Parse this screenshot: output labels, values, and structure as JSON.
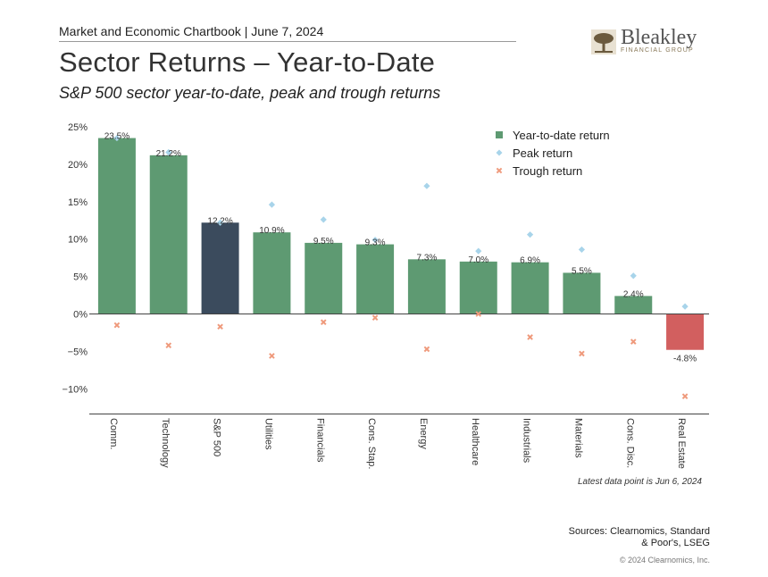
{
  "header": {
    "source_line": "Market and Economic Chartbook | June 7, 2024",
    "title": "Sector Returns – Year-to-Date",
    "subtitle": "S&P 500 sector year-to-date, peak and trough returns"
  },
  "logo": {
    "name": "Bleakley",
    "tagline": "FINANCIAL GROUP",
    "icon": "tree-icon"
  },
  "colors": {
    "ytd_sector": "#5e9a72",
    "ytd_sp500": "#3b4b5d",
    "ytd_negative": "#d25f5f",
    "peak": "#a8d4ea",
    "trough": "#ef9a7c",
    "axis": "#444444"
  },
  "chart_data": {
    "type": "bar",
    "categories": [
      "Comm.",
      "Technology",
      "S&P 500",
      "Utilities",
      "Financials",
      "Cons. Stap.",
      "Energy",
      "Healthcare",
      "Industrials",
      "Materials",
      "Cons. Disc.",
      "Real Estate"
    ],
    "series": [
      {
        "name": "Year-to-date return",
        "type": "bar",
        "values": [
          23.5,
          21.2,
          12.2,
          10.9,
          9.5,
          9.3,
          7.3,
          7.0,
          6.9,
          5.5,
          2.4,
          -4.8
        ]
      },
      {
        "name": "Peak return",
        "type": "scatter",
        "marker": "diamond",
        "values": [
          23.5,
          21.6,
          12.2,
          14.6,
          12.6,
          9.9,
          17.1,
          8.4,
          10.6,
          8.6,
          5.1,
          1.0
        ]
      },
      {
        "name": "Trough return",
        "type": "scatter",
        "marker": "x",
        "values": [
          -1.5,
          -4.2,
          -1.7,
          -5.6,
          -1.1,
          -0.5,
          -4.7,
          0.0,
          -3.1,
          -5.3,
          -3.7,
          -11.0
        ]
      }
    ],
    "data_labels": [
      "23.5%",
      "21.2%",
      "12.2%",
      "10.9%",
      "9.5%",
      "9.3%",
      "7.3%",
      "7.0%",
      "6.9%",
      "5.5%",
      "2.4%",
      "-4.8%"
    ],
    "y_ticks": [
      25,
      20,
      15,
      10,
      5,
      0,
      -5,
      -10
    ],
    "y_tick_labels": [
      "25%",
      "20%",
      "15%",
      "10%",
      "5%",
      "0%",
      "−5%",
      "−10%"
    ],
    "ylim": [
      -13.5,
      25
    ],
    "legend_position": "top-right",
    "grid": false
  },
  "footer": {
    "note": "Latest data point is Jun 6, 2024",
    "sources": "Sources: Clearnomics, Standard & Poor's, LSEG",
    "copyright": "© 2024 Clearnomics, Inc."
  }
}
